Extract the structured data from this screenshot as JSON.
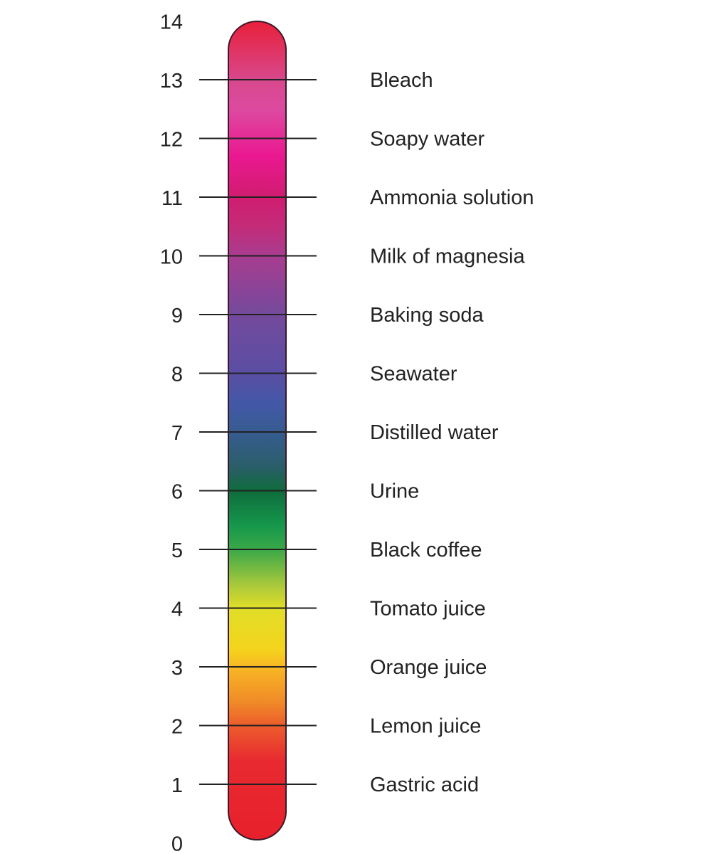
{
  "scale": {
    "min": 0,
    "max": 14,
    "ticks": [
      "0",
      "1",
      "2",
      "3",
      "4",
      "5",
      "6",
      "7",
      "8",
      "9",
      "10",
      "11",
      "12",
      "13",
      "14"
    ],
    "gradient": [
      {
        "ph": 14,
        "color": "#e8203a"
      },
      {
        "ph": 13,
        "color": "#d8488c"
      },
      {
        "ph": 12.5,
        "color": "#dc4aa0"
      },
      {
        "ph": 11.7,
        "color": "#ea1890"
      },
      {
        "ph": 11,
        "color": "#d01c70"
      },
      {
        "ph": 10.5,
        "color": "#c42c78"
      },
      {
        "ph": 10,
        "color": "#a83c90"
      },
      {
        "ph": 9,
        "color": "#744a9c"
      },
      {
        "ph": 8,
        "color": "#5a4ea4"
      },
      {
        "ph": 7.5,
        "color": "#4458a8"
      },
      {
        "ph": 7,
        "color": "#365c90"
      },
      {
        "ph": 6.4,
        "color": "#2a5e68"
      },
      {
        "ph": 6,
        "color": "#0e6c3c"
      },
      {
        "ph": 5.4,
        "color": "#16984c"
      },
      {
        "ph": 5,
        "color": "#3aa848"
      },
      {
        "ph": 4.4,
        "color": "#a8c83c"
      },
      {
        "ph": 4,
        "color": "#e0de28"
      },
      {
        "ph": 3.3,
        "color": "#f4d41c"
      },
      {
        "ph": 3,
        "color": "#f8b824"
      },
      {
        "ph": 2.4,
        "color": "#f08a28"
      },
      {
        "ph": 2,
        "color": "#ec5c2c"
      },
      {
        "ph": 1.4,
        "color": "#e82a30"
      },
      {
        "ph": 0,
        "color": "#e8202c"
      }
    ]
  },
  "items": [
    {
      "ph": 13,
      "label": "Bleach"
    },
    {
      "ph": 12,
      "label": "Soapy water"
    },
    {
      "ph": 11,
      "label": "Ammonia solution"
    },
    {
      "ph": 10,
      "label": "Milk of magnesia"
    },
    {
      "ph": 9,
      "label": "Baking soda"
    },
    {
      "ph": 8,
      "label": "Seawater"
    },
    {
      "ph": 7,
      "label": "Distilled water"
    },
    {
      "ph": 6,
      "label": "Urine"
    },
    {
      "ph": 5,
      "label": "Black coffee"
    },
    {
      "ph": 4,
      "label": "Tomato juice"
    },
    {
      "ph": 3,
      "label": "Orange juice"
    },
    {
      "ph": 2,
      "label": "Lemon juice"
    },
    {
      "ph": 1,
      "label": "Gastric acid"
    }
  ]
}
